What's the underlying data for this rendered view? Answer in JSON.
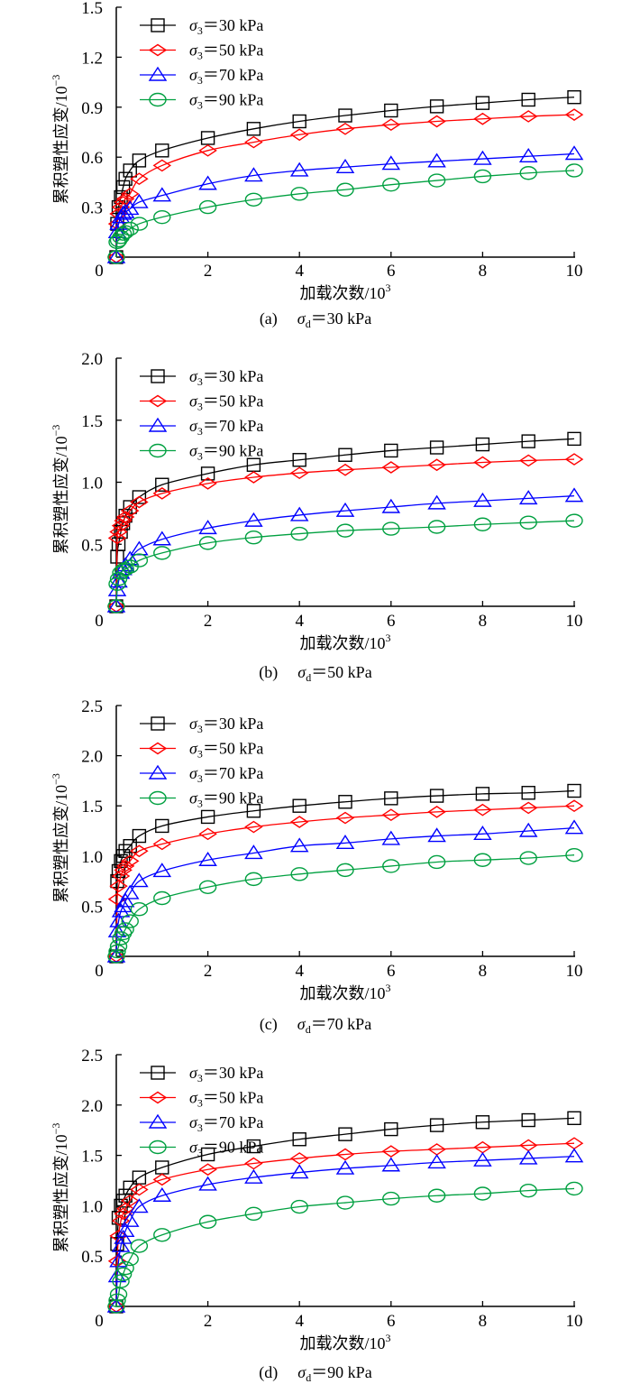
{
  "chart_data": [
    {
      "type": "line",
      "caption": {
        "label": "(a)",
        "symbol": "σ",
        "sub": "d",
        "rest": "＝30 kPa"
      },
      "xlabel": "加载次数/10",
      "xlabel_sup": "3",
      "ylabel": "累积塑性应变/10",
      "ylabel_sup": "−3",
      "xlim": [
        0,
        10
      ],
      "ylim": [
        0,
        1.5
      ],
      "xticks": [
        "0",
        "2",
        "4",
        "6",
        "8",
        "10"
      ],
      "yticks": [
        "0.3",
        "0.6",
        "0.9",
        "1.2",
        "1.5"
      ],
      "legend_position": "top-left",
      "x": [
        0,
        0.02,
        0.05,
        0.1,
        0.15,
        0.2,
        0.3,
        0.5,
        1,
        2,
        3,
        4,
        5,
        6,
        7,
        8,
        9,
        10
      ],
      "series": [
        {
          "name": "σ3＝30 kPa",
          "sub": "3",
          "rest": "＝30 kPa",
          "marker": "square",
          "color": "#000000",
          "values": [
            0,
            0.2,
            0.3,
            0.36,
            0.42,
            0.47,
            0.52,
            0.58,
            0.64,
            0.715,
            0.77,
            0.815,
            0.85,
            0.88,
            0.905,
            0.925,
            0.945,
            0.96
          ]
        },
        {
          "name": "σ3＝50 kPa",
          "sub": "3",
          "rest": "＝50 kPa",
          "marker": "diamond",
          "color": "#ff0000",
          "values": [
            0,
            0.2,
            0.26,
            0.3,
            0.33,
            0.35,
            0.38,
            0.47,
            0.55,
            0.64,
            0.69,
            0.735,
            0.77,
            0.795,
            0.815,
            0.83,
            0.845,
            0.855
          ]
        },
        {
          "name": "σ3＝70 kPa",
          "sub": "3",
          "rest": "＝70 kPa",
          "marker": "triangle",
          "color": "#0000ff",
          "values": [
            0,
            0.15,
            0.2,
            0.24,
            0.26,
            0.27,
            0.29,
            0.33,
            0.37,
            0.44,
            0.49,
            0.52,
            0.54,
            0.56,
            0.575,
            0.59,
            0.605,
            0.62
          ]
        },
        {
          "name": "σ3＝90 kPa",
          "sub": "3",
          "rest": "＝90 kPa",
          "marker": "circle",
          "color": "#00a040",
          "values": [
            0,
            0.09,
            0.1,
            0.12,
            0.14,
            0.15,
            0.17,
            0.2,
            0.24,
            0.3,
            0.345,
            0.38,
            0.405,
            0.435,
            0.46,
            0.485,
            0.505,
            0.52
          ]
        }
      ]
    },
    {
      "type": "line",
      "caption": {
        "label": "(b)",
        "symbol": "σ",
        "sub": "d",
        "rest": "＝50 kPa"
      },
      "xlabel": "加载次数/10",
      "xlabel_sup": "3",
      "ylabel": "累积塑性应变/10",
      "ylabel_sup": "−3",
      "xlim": [
        0,
        10
      ],
      "ylim": [
        0,
        2.0
      ],
      "xticks": [
        "0",
        "2",
        "4",
        "6",
        "8",
        "10"
      ],
      "yticks": [
        "0.5",
        "1.0",
        "1.5",
        "2.0"
      ],
      "legend_position": "top-left",
      "x": [
        0,
        0.02,
        0.05,
        0.1,
        0.15,
        0.2,
        0.3,
        0.5,
        1,
        2,
        3,
        4,
        5,
        6,
        7,
        8,
        9,
        10
      ],
      "series": [
        {
          "name": "σ3＝30 kPa",
          "sub": "3",
          "rest": "＝30 kPa",
          "marker": "square",
          "color": "#000000",
          "values": [
            0,
            0.4,
            0.5,
            0.6,
            0.67,
            0.73,
            0.8,
            0.88,
            0.98,
            1.07,
            1.14,
            1.18,
            1.22,
            1.255,
            1.28,
            1.305,
            1.33,
            1.35
          ]
        },
        {
          "name": "σ3＝50 kPa",
          "sub": "3",
          "rest": "＝50 kPa",
          "marker": "diamond",
          "color": "#ff0000",
          "values": [
            0,
            0.55,
            0.6,
            0.65,
            0.69,
            0.72,
            0.77,
            0.84,
            0.91,
            0.99,
            1.04,
            1.075,
            1.1,
            1.12,
            1.14,
            1.16,
            1.175,
            1.185
          ]
        },
        {
          "name": "σ3＝70 kPa",
          "sub": "3",
          "rest": "＝70 kPa",
          "marker": "triangle",
          "color": "#0000ff",
          "values": [
            0,
            0.13,
            0.2,
            0.27,
            0.3,
            0.33,
            0.38,
            0.46,
            0.54,
            0.63,
            0.69,
            0.735,
            0.77,
            0.8,
            0.83,
            0.85,
            0.87,
            0.89
          ]
        },
        {
          "name": "σ3＝90 kPa",
          "sub": "3",
          "rest": "＝90 kPa",
          "marker": "circle",
          "color": "#00a040",
          "values": [
            0,
            0.18,
            0.22,
            0.27,
            0.29,
            0.3,
            0.32,
            0.37,
            0.43,
            0.51,
            0.555,
            0.585,
            0.61,
            0.625,
            0.64,
            0.66,
            0.675,
            0.69
          ]
        }
      ]
    },
    {
      "type": "line",
      "caption": {
        "label": "(c)",
        "symbol": "σ",
        "sub": "d",
        "rest": "＝70 kPa"
      },
      "xlabel": "加载次数/10",
      "xlabel_sup": "3",
      "ylabel": "累积塑性应变/10",
      "ylabel_sup": "−3",
      "xlim": [
        0,
        10
      ],
      "ylim": [
        0,
        2.5
      ],
      "xticks": [
        "0",
        "2",
        "4",
        "6",
        "8",
        "10"
      ],
      "yticks": [
        "0.5",
        "1.0",
        "1.5",
        "2.0",
        "2.5"
      ],
      "legend_position": "top-left",
      "x": [
        0,
        0.02,
        0.05,
        0.1,
        0.15,
        0.2,
        0.3,
        0.5,
        1,
        2,
        3,
        4,
        5,
        6,
        7,
        8,
        9,
        10
      ],
      "series": [
        {
          "name": "σ3＝30 kPa",
          "sub": "3",
          "rest": "＝30 kPa",
          "marker": "square",
          "color": "#000000",
          "values": [
            0,
            0.75,
            0.85,
            0.95,
            1.0,
            1.05,
            1.1,
            1.2,
            1.3,
            1.39,
            1.45,
            1.5,
            1.54,
            1.575,
            1.6,
            1.62,
            1.63,
            1.65
          ]
        },
        {
          "name": "σ3＝50 kPa",
          "sub": "3",
          "rest": "＝50 kPa",
          "marker": "diamond",
          "color": "#ff0000",
          "values": [
            0,
            0.57,
            0.7,
            0.8,
            0.86,
            0.9,
            0.95,
            1.05,
            1.12,
            1.22,
            1.29,
            1.34,
            1.38,
            1.41,
            1.44,
            1.46,
            1.48,
            1.5
          ]
        },
        {
          "name": "σ3＝70 kPa",
          "sub": "3",
          "rest": "＝70 kPa",
          "marker": "triangle",
          "color": "#0000ff",
          "values": [
            0,
            0.25,
            0.35,
            0.45,
            0.5,
            0.55,
            0.63,
            0.75,
            0.85,
            0.96,
            1.03,
            1.1,
            1.13,
            1.17,
            1.2,
            1.22,
            1.25,
            1.28
          ]
        },
        {
          "name": "σ3＝90 kPa",
          "sub": "3",
          "rest": "＝90 kPa",
          "marker": "circle",
          "color": "#00a040",
          "values": [
            0,
            0.05,
            0.1,
            0.18,
            0.23,
            0.27,
            0.35,
            0.47,
            0.58,
            0.69,
            0.77,
            0.82,
            0.86,
            0.9,
            0.94,
            0.96,
            0.98,
            1.01
          ]
        }
      ]
    },
    {
      "type": "line",
      "caption": {
        "label": "(d)",
        "symbol": "σ",
        "sub": "d",
        "rest": "＝90 kPa"
      },
      "xlabel": "加载次数/10",
      "xlabel_sup": "3",
      "ylabel": "累积塑性应变/10",
      "ylabel_sup": "−3",
      "xlim": [
        0,
        10
      ],
      "ylim": [
        0,
        2.5
      ],
      "xticks": [
        "0",
        "2",
        "4",
        "6",
        "8",
        "10"
      ],
      "yticks": [
        "0.5",
        "1.0",
        "1.5",
        "2.0",
        "2.5"
      ],
      "legend_position": "top-left",
      "x": [
        0,
        0.02,
        0.05,
        0.1,
        0.15,
        0.2,
        0.3,
        0.5,
        1,
        2,
        3,
        4,
        5,
        6,
        7,
        8,
        9,
        10
      ],
      "series": [
        {
          "name": "σ3＝30 kPa",
          "sub": "3",
          "rest": "＝30 kPa",
          "marker": "square",
          "color": "#000000",
          "values": [
            0,
            0.62,
            0.88,
            1.0,
            1.05,
            1.1,
            1.18,
            1.28,
            1.38,
            1.51,
            1.59,
            1.66,
            1.71,
            1.76,
            1.8,
            1.83,
            1.85,
            1.87
          ]
        },
        {
          "name": "σ3＝50 kPa",
          "sub": "3",
          "rest": "＝50 kPa",
          "marker": "diamond",
          "color": "#ff0000",
          "values": [
            0,
            0.45,
            0.7,
            0.85,
            0.92,
            0.97,
            1.05,
            1.16,
            1.26,
            1.36,
            1.42,
            1.47,
            1.51,
            1.54,
            1.56,
            1.58,
            1.6,
            1.62
          ]
        },
        {
          "name": "σ3＝70 kPa",
          "sub": "3",
          "rest": "＝70 kPa",
          "marker": "triangle",
          "color": "#0000ff",
          "values": [
            0,
            0.3,
            0.45,
            0.6,
            0.68,
            0.75,
            0.85,
            0.99,
            1.1,
            1.21,
            1.28,
            1.33,
            1.37,
            1.4,
            1.43,
            1.45,
            1.47,
            1.49
          ]
        },
        {
          "name": "σ3＝90 kPa",
          "sub": "3",
          "rest": "＝90 kPa",
          "marker": "circle",
          "color": "#00a040",
          "values": [
            0,
            0.06,
            0.12,
            0.25,
            0.32,
            0.38,
            0.47,
            0.6,
            0.71,
            0.84,
            0.92,
            0.99,
            1.03,
            1.07,
            1.1,
            1.12,
            1.15,
            1.17
          ]
        }
      ]
    }
  ]
}
